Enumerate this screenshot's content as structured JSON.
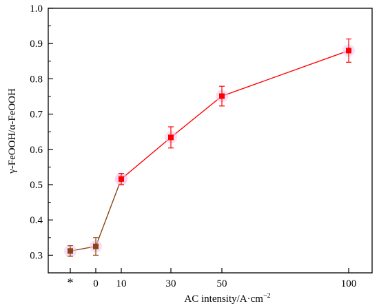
{
  "chart_data": {
    "type": "line",
    "xlabel": "AC intensity/A·cm",
    "xlabel_sup": "−2",
    "ylabel": "γ-FeOOH/α-FeOOH",
    "ylim": [
      0.25,
      1.0
    ],
    "yticks": [
      0.3,
      0.4,
      0.5,
      0.6,
      0.7,
      0.8,
      0.9,
      1.0
    ],
    "ytick_labels": [
      "0.3",
      "0.4",
      "0.5",
      "0.6",
      "0.7",
      "0.8",
      "0.9",
      "1.0"
    ],
    "categories": [
      "*",
      "0",
      "10",
      "30",
      "50",
      "100"
    ],
    "grid": false,
    "legend": "none",
    "series": [
      {
        "color": "#8B4513",
        "points": [
          {
            "x": "*",
            "y": 0.312,
            "err": 0.015
          },
          {
            "x": "0",
            "y": 0.325,
            "err": 0.025
          },
          {
            "x": "10",
            "y": 0.516,
            "err": 0.016
          }
        ]
      },
      {
        "color": "#FF0000",
        "points": [
          {
            "x": "10",
            "y": 0.516,
            "err": 0.016
          },
          {
            "x": "30",
            "y": 0.634,
            "err": 0.03
          },
          {
            "x": "50",
            "y": 0.751,
            "err": 0.028
          },
          {
            "x": "100",
            "y": 0.88,
            "err": 0.033
          }
        ]
      }
    ]
  }
}
